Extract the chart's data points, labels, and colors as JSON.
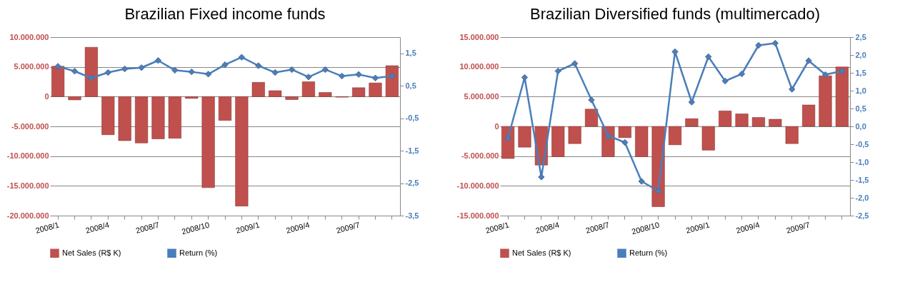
{
  "chart_data": [
    {
      "type": "bar",
      "title": "Brazilian Fixed income funds",
      "categories": [
        "2008/1",
        null,
        null,
        "2008/4",
        null,
        null,
        "2008/7",
        null,
        null,
        "2008/10",
        null,
        null,
        "2009/1",
        null,
        null,
        "2009/4",
        null,
        null,
        "2009/7",
        null,
        null
      ],
      "series": [
        {
          "name": "Net Sales (R$ K)",
          "color": "#c0504d",
          "values": [
            5100000,
            -550000,
            8300000,
            -6400000,
            -7400000,
            -7800000,
            -7100000,
            -7000000,
            -300000,
            -15300000,
            -4000000,
            -18400000,
            2400000,
            1000000,
            -500000,
            2500000,
            700000,
            -100000,
            1500000,
            2300000,
            5200000
          ]
        },
        {
          "name": "Return (%)",
          "type": "line",
          "axis": "y2",
          "color": "#4a7ebb",
          "values": [
            1.1,
            0.95,
            0.74,
            0.91,
            1.02,
            1.06,
            1.28,
            0.98,
            0.93,
            0.86,
            1.15,
            1.38,
            1.12,
            0.91,
            1.0,
            0.77,
            1.0,
            0.8,
            0.85,
            0.74,
            0.8
          ]
        }
      ],
      "ylim": [
        -20000000,
        10000000
      ],
      "yticks": [
        {
          "value": -20000000,
          "label": "-20.000.000"
        },
        {
          "value": -15000000,
          "label": "-15.000.000"
        },
        {
          "value": -10000000,
          "label": "-10.000.000"
        },
        {
          "value": -5000000,
          "label": "-5.000.000"
        },
        0,
        {
          "value": 5000000,
          "label": "5.000.000"
        },
        {
          "value": 10000000,
          "label": "10.000.000"
        }
      ],
      "y2lim": [
        -3.5,
        2.0
      ],
      "y2ticks": [
        {
          "value": -3.5,
          "label": "-3,5"
        },
        {
          "value": -2.5,
          "label": "-2,5"
        },
        {
          "value": -1.5,
          "label": "-1,5"
        },
        {
          "value": -0.5,
          "label": "-0,5"
        },
        {
          "value": 0.5,
          "label": "0,5"
        },
        {
          "value": 1.5,
          "label": "1,5"
        }
      ],
      "grid": "y",
      "legend": "bottom",
      "marker": "diamond"
    },
    {
      "type": "bar",
      "title": "Brazilian Diversified funds (multimercado)",
      "categories": [
        "2008/1",
        null,
        null,
        "2008/4",
        null,
        null,
        "2008/7",
        null,
        null,
        "2008/10",
        null,
        null,
        "2009/1",
        null,
        null,
        "2009/4",
        null,
        null,
        "2009/7",
        null,
        null
      ],
      "series": [
        {
          "name": "Net Sales (R$ K)",
          "color": "#c0504d",
          "values": [
            -5400000,
            -3500000,
            -6500000,
            -5100000,
            -2900000,
            2900000,
            -5100000,
            -1900000,
            -5100000,
            -13500000,
            -3100000,
            1300000,
            -4000000,
            2600000,
            2100000,
            1500000,
            1200000,
            -2900000,
            3600000,
            8500000,
            10000000
          ]
        },
        {
          "name": "Return (%)",
          "type": "line",
          "axis": "y2",
          "color": "#4a7ebb",
          "values": [
            -0.33,
            1.37,
            -1.42,
            1.55,
            1.76,
            0.74,
            -0.26,
            -0.45,
            -1.54,
            -1.81,
            2.09,
            0.68,
            1.95,
            1.27,
            1.47,
            2.27,
            2.33,
            1.04,
            1.84,
            1.45,
            1.55
          ]
        }
      ],
      "ylim": [
        -15000000,
        15000000
      ],
      "yticks": [
        {
          "value": -15000000,
          "label": "-15.000.000"
        },
        {
          "value": -10000000,
          "label": "-10.000.000"
        },
        {
          "value": -5000000,
          "label": "-5.000.000"
        },
        0,
        {
          "value": 5000000,
          "label": "5.000.000"
        },
        {
          "value": 10000000,
          "label": "10.000.000"
        },
        {
          "value": 15000000,
          "label": "15.000.000"
        }
      ],
      "y2lim": [
        -2.5,
        2.5
      ],
      "y2ticks": [
        {
          "value": -2.5,
          "label": "-2,5"
        },
        {
          "value": -2.0,
          "label": "-2,0"
        },
        {
          "value": -1.5,
          "label": "-1,5"
        },
        {
          "value": -1.0,
          "label": "-1,0"
        },
        {
          "value": -0.5,
          "label": "-0,5"
        },
        {
          "value": 0.0,
          "label": "0,0"
        },
        {
          "value": 0.5,
          "label": "0,5"
        },
        {
          "value": 1.0,
          "label": "1,0"
        },
        {
          "value": 1.5,
          "label": "1,5"
        },
        {
          "value": 2.0,
          "label": "2,0"
        },
        {
          "value": 2.5,
          "label": "2,5"
        }
      ],
      "grid": "y",
      "legend": "bottom",
      "marker": "diamond"
    }
  ]
}
